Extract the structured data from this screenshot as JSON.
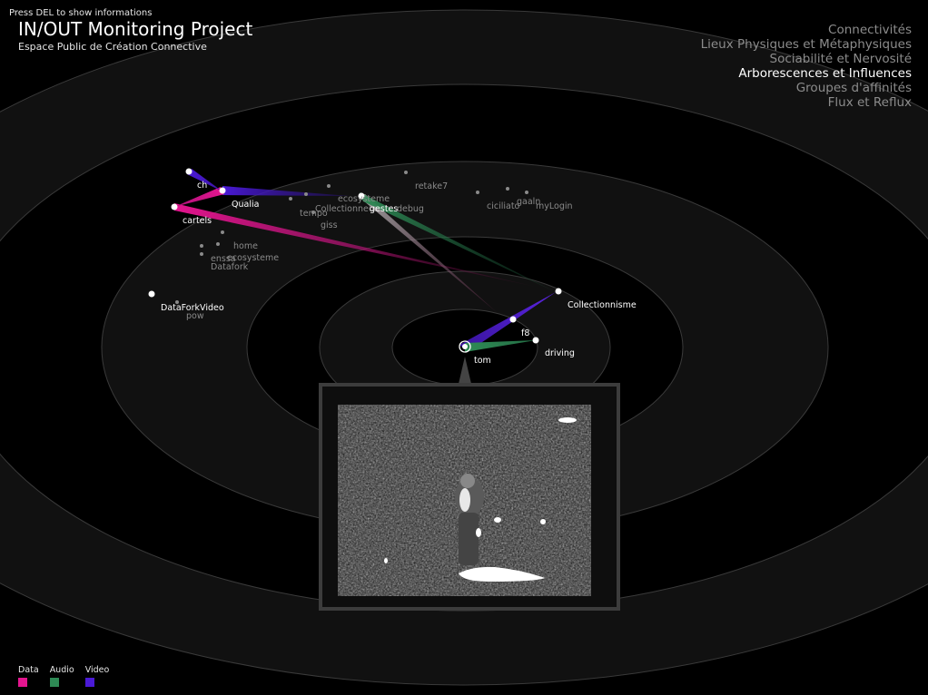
{
  "hint": "Press DEL to show informations",
  "header": {
    "title": "IN/OUT Monitoring Project",
    "subtitle": "Espace Public de Création Connective"
  },
  "menu": [
    {
      "label": "Connectivités",
      "active": false
    },
    {
      "label": "Lieux Physiques et Métaphysiques",
      "active": false
    },
    {
      "label": "Sociabilité et Nervosité",
      "active": false
    },
    {
      "label": "Arborescences et Influences",
      "active": true
    },
    {
      "label": "Groupes d'affinités",
      "active": false
    },
    {
      "label": "Flux et Reflux",
      "active": false
    }
  ],
  "legend": [
    {
      "label": "Data",
      "color": "#e4158f"
    },
    {
      "label": "Audio",
      "color": "#2e8a55"
    },
    {
      "label": "Video",
      "color": "#4a1ad6"
    }
  ],
  "colors": {
    "ring_band": "#111111",
    "ring_stroke": "#3a3a3a",
    "node_primary": "#ffffff",
    "node_secondary": "#8a8a8a",
    "label_primary": "#ffffff",
    "label_secondary": "#8a8a8a",
    "video_frame": "#3c3c3c"
  },
  "center_node": {
    "label": "tom"
  },
  "nodes": {
    "primary": [
      "ch",
      "Qualia",
      "cartels",
      "Collectionnisme",
      "f8",
      "driving",
      "DataForkVideo"
    ],
    "secondary": [
      "ecosysteme",
      "retake7",
      "tempo",
      "Collectionneur",
      "gestes",
      "debug",
      "giss",
      "ciciliato",
      "gaaln",
      "myLogin",
      "home",
      "ecosysteme",
      "enssa",
      "Datafork",
      "pow"
    ]
  },
  "video_panel": {
    "name": "live-video-feed"
  }
}
